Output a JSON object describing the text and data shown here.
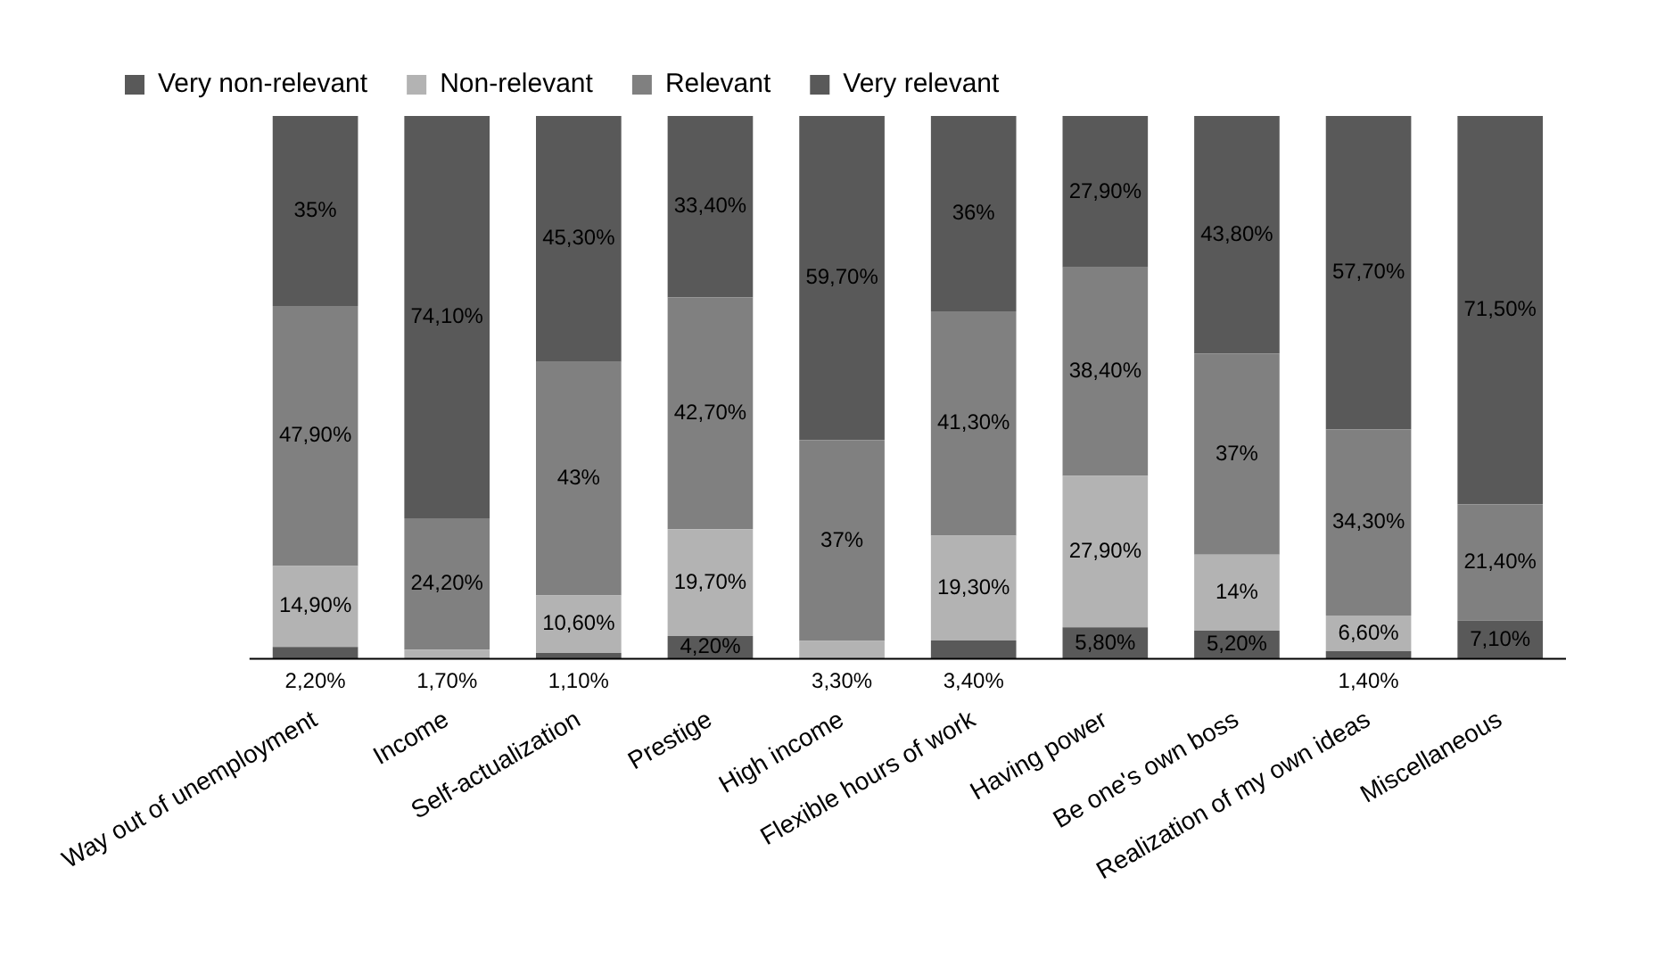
{
  "chart_data": {
    "type": "bar",
    "stacked": true,
    "categories": [
      "Way out of unemployment",
      "Income",
      "Self-actualization",
      "Prestige",
      "High income",
      "Flexible hours of work",
      "Having power",
      "Be one's own boss",
      "Realization of my own ideas",
      "Miscellaneous"
    ],
    "series": [
      {
        "name": "Very non-relevant",
        "color": "#595959",
        "values": [
          2.2,
          0,
          1.1,
          4.2,
          0,
          3.4,
          5.8,
          5.2,
          1.4,
          7.1
        ],
        "value_labels": [
          "2,20%",
          null,
          "1,10%",
          "4,20%",
          null,
          "3,40%",
          "5,80%",
          "5,20%",
          "1,40%",
          "7,10%"
        ]
      },
      {
        "name": "Non-relevant",
        "color": "#b3b3b3",
        "values": [
          14.9,
          1.7,
          10.6,
          19.7,
          3.3,
          19.3,
          27.9,
          14,
          6.6,
          0
        ],
        "value_labels": [
          "14,90%",
          "1,70%",
          "10,60%",
          "19,70%",
          "3,30%",
          "19,30%",
          "27,90%",
          "14%",
          "6,60%",
          null
        ]
      },
      {
        "name": "Relevant",
        "color": "#808080",
        "values": [
          47.9,
          24.2,
          43,
          42.7,
          37,
          41.3,
          38.4,
          37,
          34.3,
          21.4
        ],
        "value_labels": [
          "47,90%",
          "24,20%",
          "43%",
          "42,70%",
          "37%",
          "41,30%",
          "38,40%",
          "37%",
          "34,30%",
          "21,40%"
        ]
      },
      {
        "name": "Very relevant",
        "color": "#595959",
        "values": [
          35,
          74.1,
          45.3,
          33.4,
          59.7,
          36,
          27.9,
          43.8,
          57.7,
          71.5
        ],
        "value_labels": [
          "35%",
          "74,10%",
          "45,30%",
          "33,40%",
          "59,70%",
          "36%",
          "27,90%",
          "43,80%",
          "57,70%",
          "71,50%"
        ]
      }
    ],
    "ylim": [
      0,
      100
    ],
    "tick_labels": "x",
    "legend": "top left",
    "grid": false
  }
}
